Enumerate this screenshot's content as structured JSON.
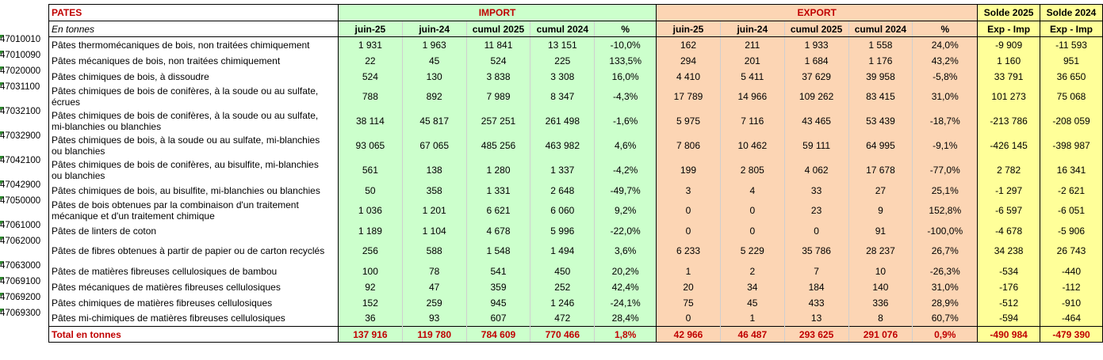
{
  "header": {
    "title": "PATES",
    "unit": "En tonnes",
    "import_label": "IMPORT",
    "export_label": "EXPORT",
    "solde_2025_label": "Solde 2025",
    "solde_2024_label": "Solde 2024",
    "columns": [
      "juin-25",
      "juin-24",
      "cumul 2025",
      "cumul 2024",
      "%"
    ],
    "solde_sub": "Exp - Imp"
  },
  "rows": [
    {
      "code": "47010010",
      "label": [
        "Pâtes thermomécaniques de bois, non traitées chimiquement"
      ],
      "import": [
        "1 931",
        "1 963",
        "11 841",
        "13 151",
        "-10,0%"
      ],
      "export": [
        "162",
        "211",
        "1 933",
        "1 558",
        "24,0%"
      ],
      "solde": [
        "-9 909",
        "-11 593"
      ]
    },
    {
      "code": "47010090",
      "label": [
        "Pâtes mécaniques de bois, non traitées chimiquement"
      ],
      "import": [
        "22",
        "45",
        "524",
        "225",
        "133,5%"
      ],
      "export": [
        "294",
        "201",
        "1 684",
        "1 176",
        "43,2%"
      ],
      "solde": [
        "1 160",
        "951"
      ]
    },
    {
      "code": "47020000",
      "label": [
        "Pâtes chimiques de bois, à dissoudre"
      ],
      "import": [
        "524",
        "130",
        "3 838",
        "3 308",
        "16,0%"
      ],
      "export": [
        "4 410",
        "5 411",
        "37 629",
        "39 958",
        "-5,8%"
      ],
      "solde": [
        "33 791",
        "36 650"
      ]
    },
    {
      "code": "47031100",
      "label": [
        "Pâtes chimiques de bois de conifères, à la soude ou au sulfate,",
        "écrues"
      ],
      "import": [
        "788",
        "892",
        "7 989",
        "8 347",
        "-4,3%"
      ],
      "export": [
        "17 789",
        "14 966",
        "109 262",
        "83 415",
        "31,0%"
      ],
      "solde": [
        "101 273",
        "75 068"
      ]
    },
    {
      "code": "47032100",
      "label": [
        "Pâtes chimiques de bois de conifères, à la soude ou au sulfate,",
        "mi-blanchies ou blanchies"
      ],
      "import": [
        "38 114",
        "45 817",
        "257 251",
        "261 498",
        "-1,6%"
      ],
      "export": [
        "5 975",
        "7 116",
        "43 465",
        "53 439",
        "-18,7%"
      ],
      "solde": [
        "-213 786",
        "-208 059"
      ]
    },
    {
      "code": "47032900",
      "label": [
        "Pâtes chimiques de bois, à la soude ou au sulfate, mi-blanchies",
        "ou blanchies"
      ],
      "import": [
        "93 065",
        "67 065",
        "485 256",
        "463 982",
        "4,6%"
      ],
      "export": [
        "7 806",
        "10 462",
        "59 111",
        "64 995",
        "-9,1%"
      ],
      "solde": [
        "-426 145",
        "-398 987"
      ]
    },
    {
      "code": "47042100",
      "label": [
        "Pâtes chimiques de bois de conifères, au bisulfite, mi-blanchies",
        "ou blanchies"
      ],
      "import": [
        "561",
        "138",
        "1 280",
        "1 337",
        "-4,2%"
      ],
      "export": [
        "199",
        "2 805",
        "4 062",
        "17 678",
        "-77,0%"
      ],
      "solde": [
        "2 782",
        "16 341"
      ]
    },
    {
      "code": "47042900",
      "label": [
        "Pâtes chimiques de bois, au bisulfite, mi-blanchies ou blanchies"
      ],
      "import": [
        "50",
        "358",
        "1 331",
        "2 648",
        "-49,7%"
      ],
      "export": [
        "3",
        "4",
        "33",
        "27",
        "25,1%"
      ],
      "solde": [
        "-1 297",
        "-2 621"
      ]
    },
    {
      "code": "47050000",
      "label": [
        "Pâtes de bois obtenues par la combinaison d'un traitement",
        "mécanique et d'un traitement chimique"
      ],
      "import": [
        "1 036",
        "1 201",
        "6 621",
        "6 060",
        "9,2%"
      ],
      "export": [
        "0",
        "0",
        "23",
        "9",
        "152,8%"
      ],
      "solde": [
        "-6 597",
        "-6 051"
      ]
    },
    {
      "code": "47061000",
      "label": [
        "Pâtes de linters de coton"
      ],
      "import": [
        "1 189",
        "1 104",
        "4 678",
        "5 996",
        "-22,0%"
      ],
      "export": [
        "0",
        "0",
        "0",
        "91",
        "-100,0%"
      ],
      "solde": [
        "-4 678",
        "-5 906"
      ]
    },
    {
      "code": "47062000",
      "label": [
        "Pâtes de fibres obtenues à partir de papier ou de carton recyclés"
      ],
      "import": [
        "256",
        "588",
        "1 548",
        "1 494",
        "3,6%"
      ],
      "export": [
        "6 233",
        "5 229",
        "35 786",
        "28 237",
        "26,7%"
      ],
      "solde": [
        "34 238",
        "26 743"
      ]
    },
    {
      "code": "47063000",
      "label": [
        "Pâtes de matières fibreuses cellulosiques de bambou"
      ],
      "import": [
        "100",
        "78",
        "541",
        "450",
        "20,2%"
      ],
      "export": [
        "1",
        "2",
        "7",
        "10",
        "-26,3%"
      ],
      "solde": [
        "-534",
        "-440"
      ]
    },
    {
      "code": "47069100",
      "label": [
        "Pâtes mécaniques de matières fibreuses cellulosiques"
      ],
      "import": [
        "92",
        "47",
        "359",
        "252",
        "42,4%"
      ],
      "export": [
        "20",
        "34",
        "184",
        "140",
        "31,0%"
      ],
      "solde": [
        "-176",
        "-112"
      ]
    },
    {
      "code": "47069200",
      "label": [
        "Pâtes chimiques de matières fibreuses cellulosiques"
      ],
      "import": [
        "152",
        "259",
        "945",
        "1 246",
        "-24,1%"
      ],
      "export": [
        "75",
        "45",
        "433",
        "336",
        "28,9%"
      ],
      "solde": [
        "-512",
        "-910"
      ]
    },
    {
      "code": "47069300",
      "label": [
        "Pâtes mi-chimiques de matières fibreuses cellulosiques"
      ],
      "import": [
        "36",
        "93",
        "607",
        "472",
        "28,4%"
      ],
      "export": [
        "0",
        "1",
        "13",
        "8",
        "60,7%"
      ],
      "solde": [
        "-594",
        "-464"
      ]
    }
  ],
  "total": {
    "label": "Total en tonnes",
    "import": [
      "137 916",
      "119 780",
      "784 609",
      "770 466",
      "1,8%"
    ],
    "export": [
      "42 966",
      "46 487",
      "293 625",
      "291 076",
      "0,9%"
    ],
    "solde": [
      "-490 984",
      "-479 390"
    ]
  },
  "colors": {
    "import_bg": "#ccffcc",
    "export_bg": "#fcd5b4",
    "solde_bg": "#ffff99",
    "header_text": "#c00000",
    "code_marker": "#2e8b2e"
  }
}
